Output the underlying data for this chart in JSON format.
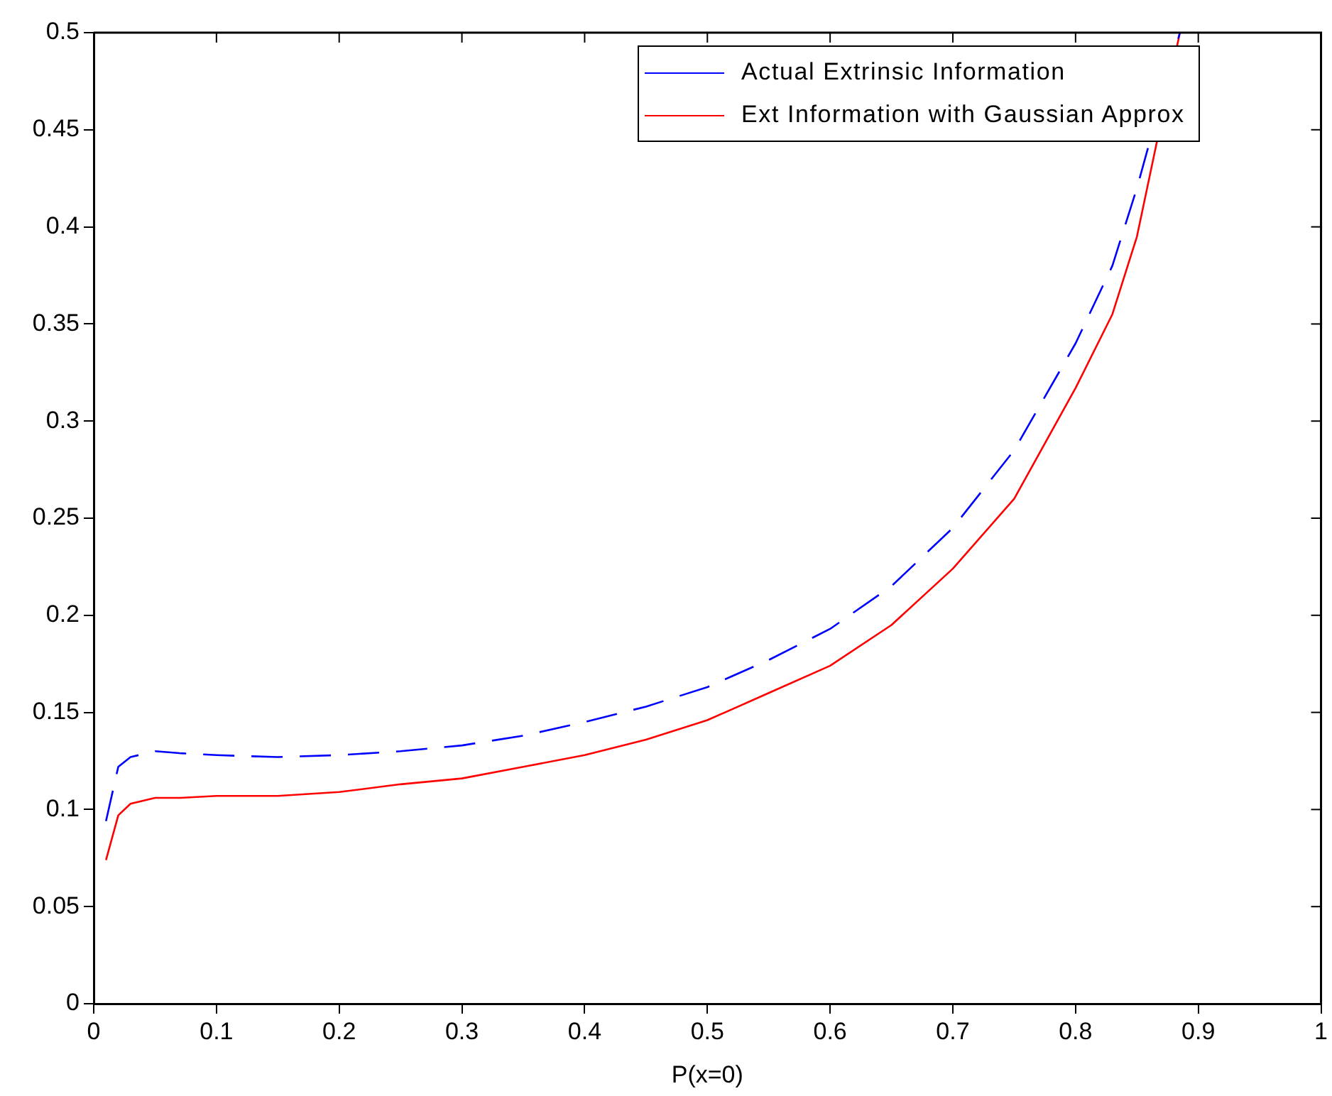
{
  "chart_data": {
    "type": "line",
    "xlabel": "P(x=0)",
    "xlim": [
      0,
      1
    ],
    "xticks": [
      0,
      0.1,
      0.2,
      0.3,
      0.4,
      0.5,
      0.6,
      0.7,
      0.8,
      0.9,
      1
    ],
    "ylim": [
      0,
      0.5
    ],
    "yticks": [
      0,
      0.05,
      0.1,
      0.15,
      0.2,
      0.25,
      0.3,
      0.35,
      0.4,
      0.45,
      0.5
    ],
    "grid": false,
    "legend": "top right",
    "marker": "none",
    "series": [
      {
        "name": "Actual Extrinsic Information",
        "color": "#0000ff",
        "line_style": "dashed",
        "x": [
          0.01,
          0.02,
          0.03,
          0.05,
          0.07,
          0.1,
          0.15,
          0.2,
          0.25,
          0.3,
          0.35,
          0.4,
          0.45,
          0.5,
          0.55,
          0.6,
          0.65,
          0.7,
          0.75,
          0.8,
          0.83,
          0.85,
          0.885
        ],
        "values": [
          0.094,
          0.122,
          0.127,
          0.13,
          0.129,
          0.128,
          0.127,
          0.128,
          0.13,
          0.133,
          0.138,
          0.145,
          0.153,
          0.163,
          0.177,
          0.193,
          0.215,
          0.245,
          0.285,
          0.34,
          0.38,
          0.42,
          0.5
        ]
      },
      {
        "name": "Ext Information with Gaussian Approx",
        "color": "#ff0000",
        "line_style": "solid",
        "x": [
          0.01,
          0.02,
          0.03,
          0.05,
          0.07,
          0.1,
          0.15,
          0.2,
          0.25,
          0.3,
          0.35,
          0.4,
          0.45,
          0.5,
          0.55,
          0.6,
          0.65,
          0.7,
          0.75,
          0.8,
          0.83,
          0.85,
          0.885
        ],
        "values": [
          0.074,
          0.097,
          0.103,
          0.106,
          0.106,
          0.107,
          0.107,
          0.109,
          0.113,
          0.116,
          0.122,
          0.128,
          0.136,
          0.146,
          0.16,
          0.174,
          0.195,
          0.224,
          0.26,
          0.317,
          0.355,
          0.395,
          0.5
        ]
      }
    ]
  }
}
